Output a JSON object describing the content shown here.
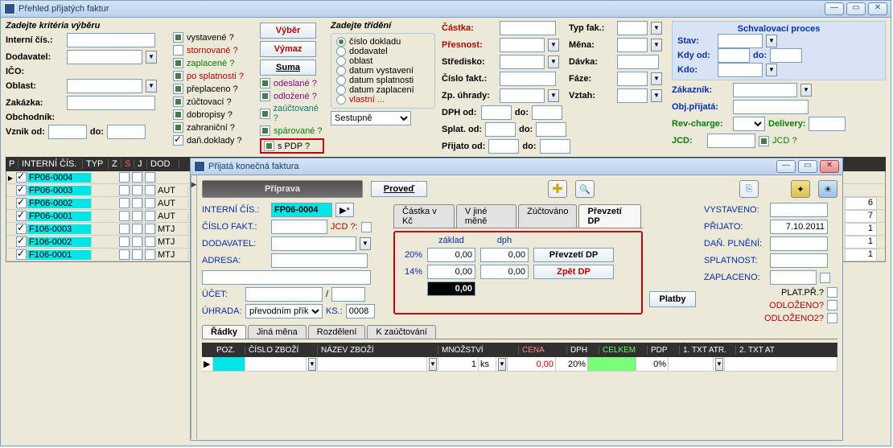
{
  "mainWindow": {
    "title": "Přehled přijatých faktur",
    "criteria": {
      "header": "Zadejte kritéria výběru",
      "internalNo": "Interní čís.:",
      "supplier": "Dodavatel:",
      "ico": "IČO:",
      "region": "Oblast:",
      "order": "Zakázka:",
      "salesman": "Obchodník:",
      "fromLabel": "Vznik od:",
      "toLabel": "do:"
    },
    "checks": {
      "vystavene": "vystavené ?",
      "stornovane": "stornované ?",
      "zaplacene": "zaplacené ?",
      "poSplatnosti": "po splatnosti ?",
      "preplaceno": "přeplaceno ?",
      "zuctovaci": "zúčtovací ?",
      "dobropisy": "dobropisy ?",
      "zahranicni": "zahraniční ?",
      "danDoklady": "daň.doklady ?",
      "odeslane": "odeslané ?",
      "odlozene": "odložené ?",
      "zauctovane": "zaúčtované ?",
      "sparovane": "spárované ?",
      "sPDP": "s PDP ?"
    },
    "buttons": {
      "vyber": "Výběr",
      "vymaz": "Výmaz",
      "suma": "Suma"
    },
    "sort": {
      "header": "Zadejte třídění",
      "o1": "číslo dokladu",
      "o2": "dodavatel",
      "o3": "oblast",
      "o4": "datum vystavení",
      "o5": "datum splatnosti",
      "o6": "datum zaplacení",
      "o7": "vlastní ...",
      "direction": "Sestupně"
    },
    "rightFilters": {
      "castka": "Částka:",
      "presnost": "Přesnost:",
      "stredisko": "Středisko:",
      "cisloFakt": "Číslo fakt.:",
      "zpUhrady": "Zp. úhrady:",
      "dphOd": "DPH od:",
      "do": "do:",
      "splatOd": "Splat. od:",
      "prijatoOd": "Přijato od:",
      "typFak": "Typ fak.:",
      "mena": "Měna:",
      "davka": "Dávka:",
      "faze": "Fáze:",
      "vztah": "Vztah:"
    },
    "approval": {
      "title": "Schvalovací proces",
      "stav": "Stav:",
      "kdyOd": "Kdy od:",
      "do": "do:",
      "kdo": "Kdo:"
    },
    "right2": {
      "zakaznik": "Zákazník:",
      "objPrijata": "Obj.přijatá:",
      "revCharge": "Rev-charge:",
      "delivery": "Delivery:",
      "jcd": "JCD:",
      "jcdQ": "JCD ?"
    },
    "table": {
      "headers": [
        "P",
        "INTERNÍ ČÍS.",
        "TYP",
        "Z",
        "S",
        "J",
        "DOD"
      ],
      "rows": [
        {
          "p": true,
          "ic": "FP06-0004",
          "z": false,
          "s": false,
          "j": false,
          "dod": ""
        },
        {
          "p": true,
          "ic": "FP06-0003",
          "z": false,
          "s": false,
          "j": false,
          "dod": "AUT"
        },
        {
          "p": true,
          "ic": "FP06-0002",
          "z": false,
          "s": false,
          "j": false,
          "dod": "AUT"
        },
        {
          "p": true,
          "ic": "FP06-0001",
          "z": false,
          "s": false,
          "j": false,
          "dod": "AUT"
        },
        {
          "p": true,
          "ic": "F106-0003",
          "z": false,
          "s": false,
          "j": false,
          "dod": "MTJ"
        },
        {
          "p": true,
          "ic": "F106-0002",
          "z": false,
          "s": false,
          "j": false,
          "dod": "MTJ"
        },
        {
          "p": true,
          "ic": "F106-0001",
          "z": false,
          "s": false,
          "j": false,
          "dod": "MTJ"
        }
      ],
      "rightValues": [
        "6",
        "7",
        "1",
        "1",
        "1"
      ]
    }
  },
  "invoiceWindow": {
    "title": "Přijatá konečná faktura",
    "topbar": {
      "priprava": "Příprava",
      "proved": "Proveď",
      "platby": "Platby"
    },
    "fields": {
      "internCis": "INTERNÍ ČÍS.:",
      "internCisVal": "FP06-0004",
      "cisloFakt": "ČÍSLO FAKT.:",
      "jcdQ": "JCD ?: ",
      "dodavatel": "DODAVATEL:",
      "adresa": "ADRESA:",
      "ucet": "ÚČET:",
      "slash": "/",
      "uhrada": "ÚHRADA:",
      "uhradaVal": "převodním příkaz",
      "ks": "KS.:",
      "ksVal": "0008"
    },
    "tabs": {
      "t1": "Částka v Kč",
      "t2": "V jiné měně",
      "t3": "Zúčtováno",
      "t4": "Převzetí DP"
    },
    "dpBox": {
      "zaklad": "základ",
      "dph": "dph",
      "r1": "20%",
      "r2": "14%",
      "v1a": "0,00",
      "v1b": "0,00",
      "v2a": "0,00",
      "v2b": "0,00",
      "vtot": "0,00",
      "btn1": "Převzetí DP",
      "btn2": "Zpět DP"
    },
    "rightCol": {
      "vystaveno": "VYSTAVENO:",
      "prijato": "PŘIJATO:",
      "prijatoVal": "7.10.2011",
      "danPlneni": "DAŇ. PLNĚNÍ:",
      "splatnost": "SPLATNOST:",
      "zaplaceno": "ZAPLACENO:",
      "platPr": "PLAT.PŘ.?",
      "odlozeno": "ODLOŽENO?",
      "odlozeno2": "ODLOŽENO2?"
    },
    "lineTabs": {
      "t1": "Řádky",
      "t2": "Jiná měna",
      "t3": "Rozdělení",
      "t4": "K zaúčtování"
    },
    "linesHdr": {
      "poz": "POZ.",
      "cz": "ČÍSLO ZBOŽÍ",
      "nz": "NÁZEV ZBOŽÍ",
      "mn": "MNOŽSTVÍ",
      "cena": "CENA",
      "dph": "DPH",
      "celkem": "CELKEM",
      "pdp": "PDP",
      "t1": "1. TXT ATR.",
      "t2": "2. TXT AT"
    },
    "line": {
      "qty": "1",
      "unit": "ks",
      "cena": "0,00",
      "dph": "20%",
      "pdp": "0%"
    }
  }
}
